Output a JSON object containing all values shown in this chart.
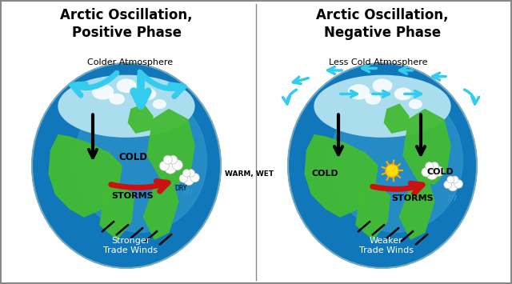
{
  "title_left": "Arctic Oscillation,\nPositive Phase",
  "title_right": "Arctic Oscillation,\nNegative Phase",
  "title_fontsize": 12,
  "label_colder_atm": "Colder Atmosphere",
  "label_less_cold_atm": "Less Cold Atmosphere",
  "label_cold": "COLD",
  "label_storms": "STORMS",
  "label_warm_wet": "WARM, WET",
  "label_dry": "DRY",
  "label_stronger": "Stronger\nTrade Winds",
  "label_weaker": "Weaker\nTrade Winds",
  "ocean_color": "#2288cc",
  "ocean_color2": "#3399dd",
  "land_color": "#44bb33",
  "arctic_color": "#99ccee",
  "arrow_cyan": "#33ccee",
  "arrow_red": "#cc1111",
  "arrow_black": "#111111",
  "bg_color": "#ffffff"
}
